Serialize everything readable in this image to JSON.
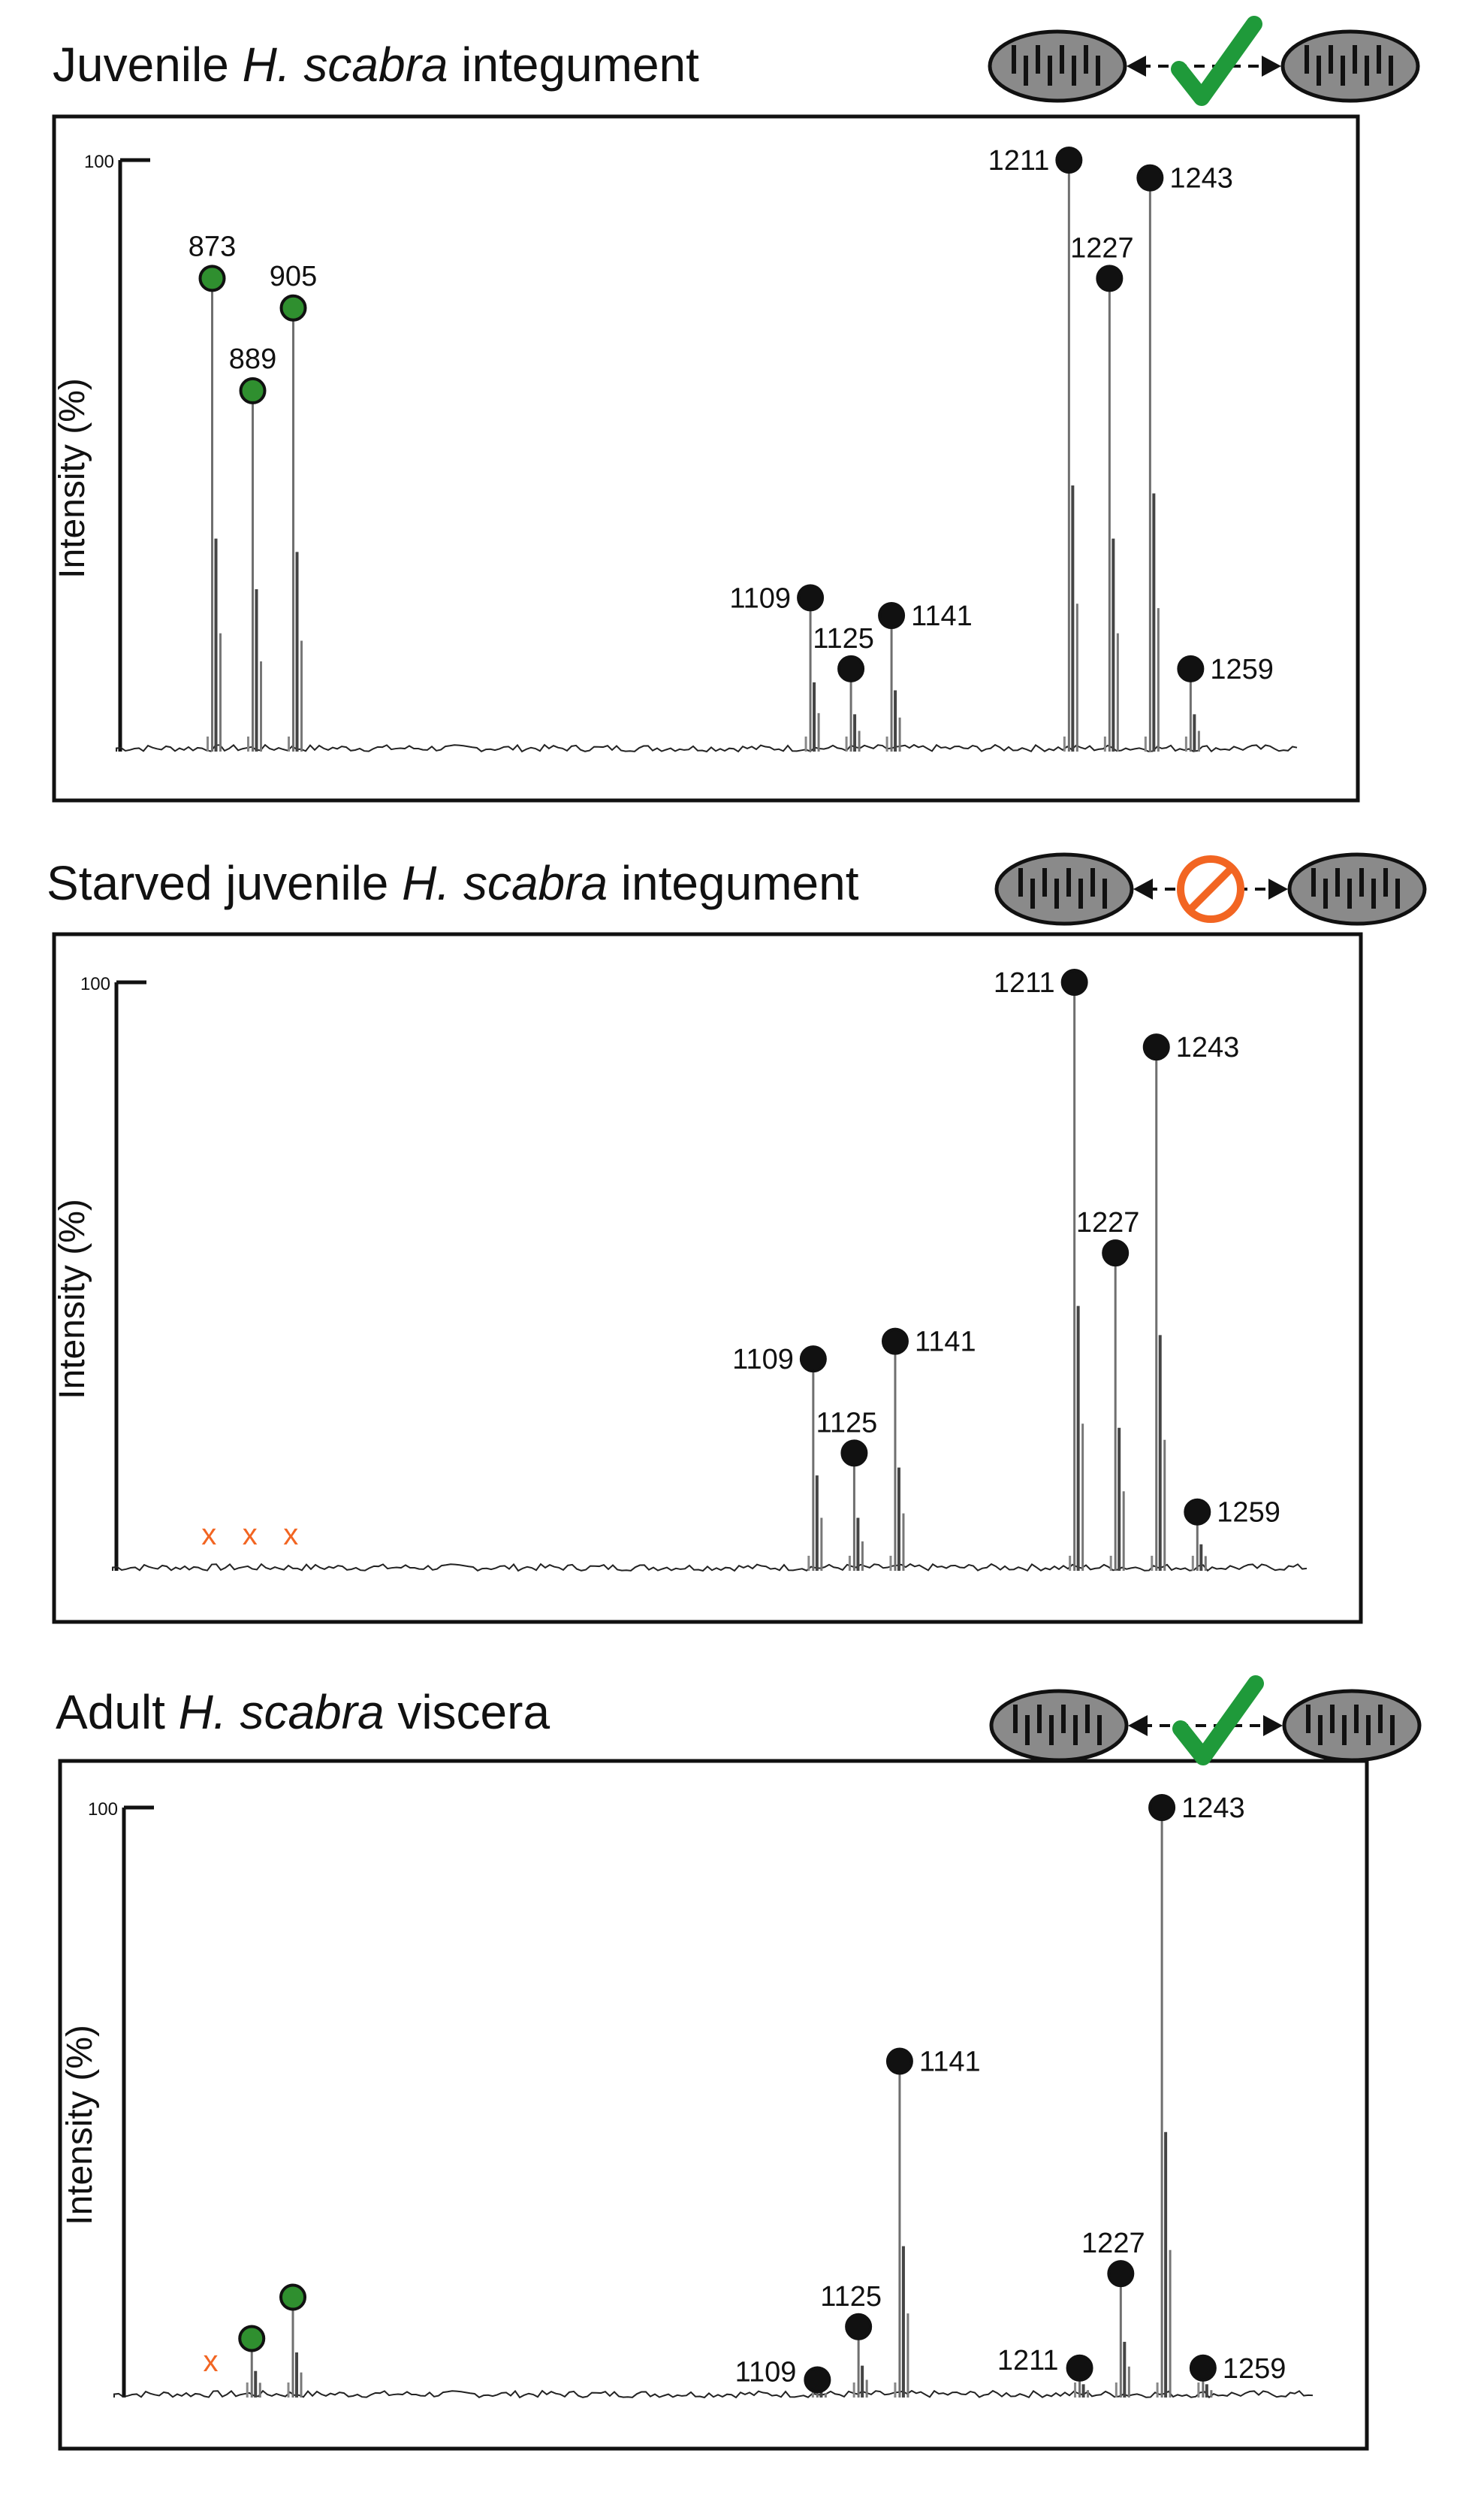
{
  "colors": {
    "found_marker": "#2f8f2f",
    "peak_marker": "#111111",
    "absent_marker": "#f26522",
    "check": "#1f9a3a",
    "blocked": "#f26522",
    "spectrum": "#6f6f6f",
    "mito_fill": "#8a8a8a"
  },
  "chart_data": [
    {
      "type": "line",
      "title_parts": [
        "Juvenile ",
        "H. scabra",
        " integument"
      ],
      "ylabel": "Intensity (%)",
      "ytick": "100",
      "ylim": [
        0,
        100
      ],
      "xlim": [
        853,
        1290
      ],
      "icon_state": "fusion",
      "peaks": [
        {
          "x": 873,
          "y": 80,
          "label": "873",
          "marker": "green"
        },
        {
          "x": 889,
          "y": 61,
          "label": "889",
          "marker": "green"
        },
        {
          "x": 905,
          "y": 75,
          "label": "905",
          "marker": "green"
        },
        {
          "x": 1109,
          "y": 26,
          "label": "1109",
          "marker": "black"
        },
        {
          "x": 1125,
          "y": 14,
          "label": "1125",
          "marker": "black"
        },
        {
          "x": 1141,
          "y": 23,
          "label": "1141",
          "marker": "black"
        },
        {
          "x": 1211,
          "y": 100,
          "label": "1211",
          "marker": "black"
        },
        {
          "x": 1227,
          "y": 80,
          "label": "1227",
          "marker": "black"
        },
        {
          "x": 1243,
          "y": 97,
          "label": "1243",
          "marker": "black"
        },
        {
          "x": 1259,
          "y": 14,
          "label": "1259",
          "marker": "black"
        }
      ],
      "absent_marks": []
    },
    {
      "type": "line",
      "title_parts": [
        "Starved juvenile ",
        "H. scabra",
        " integument"
      ],
      "ylabel": "Intensity (%)",
      "ytick": "100",
      "ylim": [
        0,
        100
      ],
      "xlim": [
        853,
        1290
      ],
      "icon_state": "blocked",
      "peaks": [
        {
          "x": 1109,
          "y": 36,
          "label": "1109",
          "marker": "black"
        },
        {
          "x": 1125,
          "y": 20,
          "label": "1125",
          "marker": "black"
        },
        {
          "x": 1141,
          "y": 39,
          "label": "1141",
          "marker": "black"
        },
        {
          "x": 1211,
          "y": 100,
          "label": "1211",
          "marker": "black"
        },
        {
          "x": 1227,
          "y": 54,
          "label": "1227",
          "marker": "black"
        },
        {
          "x": 1243,
          "y": 89,
          "label": "1243",
          "marker": "black"
        },
        {
          "x": 1259,
          "y": 10,
          "label": "1259",
          "marker": "black"
        }
      ],
      "absent_marks": [
        {
          "x": 873,
          "label": "x"
        },
        {
          "x": 889,
          "label": "x"
        },
        {
          "x": 905,
          "label": "x"
        }
      ]
    },
    {
      "type": "line",
      "title_parts": [
        "Adult ",
        "H. scabra",
        " viscera"
      ],
      "ylabel": "Intensity (%)",
      "ytick": "100",
      "ylim": [
        0,
        100
      ],
      "xlim": [
        853,
        1290
      ],
      "icon_state": "fusion",
      "peaks": [
        {
          "x": 889,
          "y": 10,
          "label": "",
          "marker": "green"
        },
        {
          "x": 905,
          "y": 17,
          "label": "",
          "marker": "green"
        },
        {
          "x": 1109,
          "y": 3,
          "label": "1109",
          "marker": "black"
        },
        {
          "x": 1125,
          "y": 12,
          "label": "1125",
          "marker": "black"
        },
        {
          "x": 1141,
          "y": 57,
          "label": "1141",
          "marker": "black"
        },
        {
          "x": 1211,
          "y": 5,
          "label": "1211",
          "marker": "black"
        },
        {
          "x": 1227,
          "y": 21,
          "label": "1227",
          "marker": "black"
        },
        {
          "x": 1243,
          "y": 100,
          "label": "1243",
          "marker": "black"
        },
        {
          "x": 1259,
          "y": 5,
          "label": "1259",
          "marker": "black"
        }
      ],
      "absent_marks": [
        {
          "x": 873,
          "label": "x"
        }
      ]
    }
  ]
}
